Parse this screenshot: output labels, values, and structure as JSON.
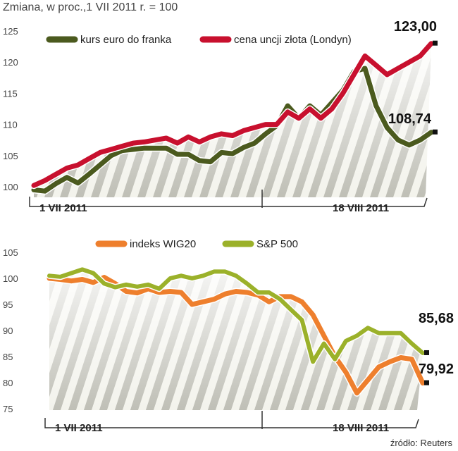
{
  "header": "Zmiana, w proc.,1 VII 2011 r. = 100",
  "footer": "źródło: Reuters",
  "colors": {
    "chf": "#4b5a1e",
    "gold": "#c8102e",
    "wig": "#ee7f2d",
    "sp": "#9bb12a",
    "stripe_dark": "#b8b8ae",
    "stripe_light": "#f2f2ea"
  },
  "chart_data": [
    {
      "type": "line",
      "ylim": [
        100,
        125
      ],
      "yticks": [
        "100",
        "105",
        "110",
        "115",
        "120",
        "125"
      ],
      "xlabels": [
        "1 VII 2011",
        "18 VIII 2011"
      ],
      "series": [
        {
          "name": "kurs euro do franka",
          "values": [
            99.5,
            99.3,
            100.5,
            101.5,
            100.6,
            102.0,
            103.5,
            105.0,
            105.8,
            106.0,
            106.2,
            106.2,
            106.2,
            105.2,
            105.2,
            104.2,
            104.0,
            105.5,
            105.3,
            106.3,
            107.0,
            108.5,
            109.8,
            113.0,
            111.0,
            113.0,
            111.5,
            113.5,
            115.5,
            118.5,
            119.0,
            113.0,
            109.5,
            107.5,
            106.7,
            107.5,
            108.74
          ]
        },
        {
          "name": "cena uncji złota (Londyn)",
          "values": [
            100.2,
            101.0,
            102.0,
            103.0,
            103.5,
            104.5,
            105.5,
            106.0,
            106.5,
            107.0,
            107.2,
            107.5,
            107.8,
            107.0,
            108.0,
            107.2,
            108.0,
            108.5,
            108.2,
            109.0,
            109.5,
            110.0,
            110.0,
            112.0,
            111.0,
            112.5,
            111.0,
            112.5,
            115.0,
            118.0,
            121.0,
            119.5,
            118.0,
            119.0,
            120.0,
            121.0,
            123.0
          ]
        }
      ],
      "end_labels": [
        "123,00",
        "108,74"
      ]
    },
    {
      "type": "line",
      "ylim": [
        75,
        105
      ],
      "yticks": [
        "75",
        "80",
        "85",
        "90",
        "95",
        "100",
        "105"
      ],
      "xlabels": [
        "1 VII 2011",
        "18 VIII 2011"
      ],
      "series": [
        {
          "name": "indeks WIG20",
          "values": [
            100.0,
            99.8,
            99.5,
            99.8,
            99.2,
            100.2,
            99.0,
            97.5,
            97.2,
            98.0,
            97.3,
            97.5,
            97.3,
            95.0,
            95.5,
            96.0,
            97.0,
            97.5,
            97.3,
            96.8,
            95.5,
            96.5,
            96.5,
            95.5,
            93.0,
            89.0,
            85.0,
            82.0,
            78.0,
            80.5,
            83.0,
            84.0,
            84.8,
            84.5,
            79.92
          ]
        },
        {
          "name": "S&P 500",
          "values": [
            100.5,
            100.3,
            101.0,
            101.7,
            101.0,
            99.0,
            98.3,
            98.8,
            98.4,
            98.8,
            98.0,
            100.0,
            100.5,
            100.0,
            100.5,
            101.3,
            101.3,
            100.5,
            99.0,
            97.3,
            97.3,
            96.0,
            94.0,
            92.0,
            84.0,
            87.5,
            84.5,
            88.0,
            89.0,
            90.5,
            89.5,
            89.5,
            89.5,
            87.5,
            85.68
          ]
        }
      ],
      "end_labels": [
        "85,68",
        "79,92"
      ]
    }
  ]
}
